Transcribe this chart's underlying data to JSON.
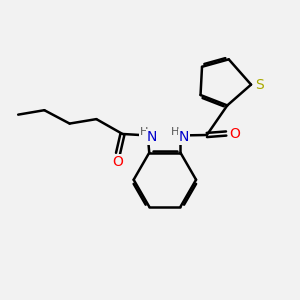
{
  "bg_color": "#f2f2f2",
  "atom_colors": {
    "S": "#aaaa00",
    "N": "#0000cc",
    "O": "#ff0000",
    "C": "#000000"
  },
  "bond_color": "#000000",
  "bond_width": 1.8,
  "figsize": [
    3.0,
    3.0
  ],
  "dpi": 100
}
